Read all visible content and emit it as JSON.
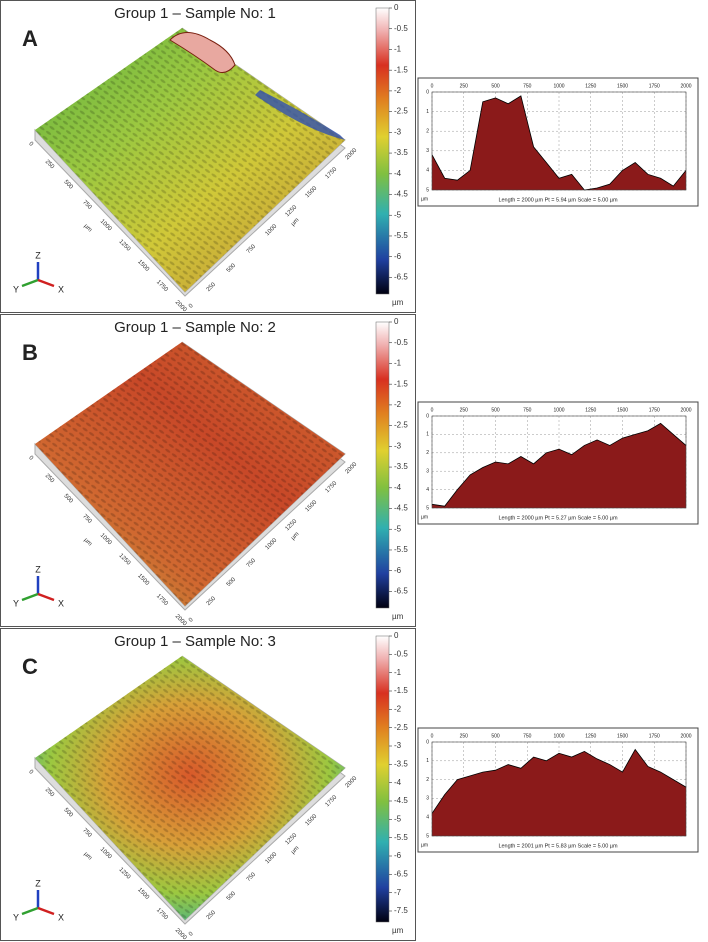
{
  "panels": [
    {
      "label": "A",
      "title": "Group 1 – Sample No: 1",
      "colorbar": {
        "lim": [
          0,
          -6.9
        ],
        "ticks": [
          0,
          -0.5,
          -1,
          -1.5,
          -2,
          -2.5,
          -3,
          -3.5,
          -4,
          -4.5,
          -5,
          -5.5,
          -6,
          -6.5
        ],
        "unit": "µm"
      }
    },
    {
      "label": "B",
      "title": "Group 1 – Sample No: 2",
      "colorbar": {
        "lim": [
          0,
          -6.9
        ],
        "ticks": [
          0,
          -0.5,
          -1,
          -1.5,
          -2,
          -2.5,
          -3,
          -3.5,
          -4,
          -4.5,
          -5,
          -5.5,
          -6,
          -6.5
        ],
        "unit": "µm"
      }
    },
    {
      "label": "C",
      "title": "Group 1 – Sample No: 3",
      "colorbar": {
        "lim": [
          0,
          -7.8
        ],
        "ticks": [
          0,
          -0.5,
          -1,
          -1.5,
          -2,
          -2.5,
          -3,
          -3.5,
          -4,
          -4.5,
          -5,
          -5.5,
          -6,
          -6.5,
          -7,
          -7.5
        ],
        "unit": "µm"
      }
    }
  ],
  "surface_ticks": [
    "0",
    "250",
    "500",
    "750",
    "1000",
    "1250",
    "1500",
    "1750",
    "2000"
  ],
  "surface_unit": "µm",
  "gizmo": [
    "Z",
    "Y",
    "X"
  ],
  "chart_data": [
    {
      "type": "area",
      "footer": "Length = 2000 µm  Pt = 5.94 µm  Scale = 5.00 µm",
      "y_label": "µm",
      "color": "#8b1a1a",
      "x": [
        0,
        100,
        200,
        300,
        400,
        500,
        600,
        700,
        800,
        900,
        1000,
        1100,
        1200,
        1300,
        1400,
        1500,
        1600,
        1700,
        1800,
        1900,
        2000
      ],
      "values": [
        3.2,
        4.4,
        4.5,
        4.0,
        0.5,
        0.3,
        0.6,
        0.2,
        2.8,
        3.6,
        4.4,
        4.2,
        5.0,
        4.9,
        4.7,
        4.0,
        3.6,
        4.2,
        4.4,
        4.8,
        4.0
      ],
      "xlim": [
        0,
        2000
      ],
      "xticks": [
        0,
        250,
        500,
        750,
        1000,
        1250,
        1500,
        1750,
        2000
      ],
      "ylim": [
        5,
        0
      ],
      "yticks": [
        0,
        1,
        2,
        3,
        4,
        5
      ],
      "grid": true
    },
    {
      "type": "area",
      "footer": "Length = 2000 µm  Pt = 5.27 µm  Scale = 5.00 µm",
      "y_label": "µm",
      "color": "#8b1a1a",
      "x": [
        0,
        100,
        200,
        300,
        400,
        500,
        600,
        700,
        800,
        900,
        1000,
        1100,
        1200,
        1300,
        1400,
        1500,
        1600,
        1700,
        1800,
        1900,
        2000
      ],
      "values": [
        4.8,
        4.9,
        4.0,
        3.2,
        2.8,
        2.5,
        2.6,
        2.2,
        2.6,
        2.0,
        1.8,
        2.1,
        1.6,
        1.3,
        1.6,
        1.2,
        1.0,
        0.8,
        0.4,
        1.0,
        1.6
      ],
      "xlim": [
        0,
        2000
      ],
      "xticks": [
        0,
        250,
        500,
        750,
        1000,
        1250,
        1500,
        1750,
        2000
      ],
      "ylim": [
        5,
        0
      ],
      "yticks": [
        0,
        1,
        2,
        3,
        4,
        5
      ],
      "grid": true
    },
    {
      "type": "area",
      "footer": "Length = 2001 µm  Pt = 5.83 µm  Scale = 5.00 µm",
      "y_label": "µm",
      "color": "#8b1a1a",
      "x": [
        0,
        100,
        200,
        300,
        400,
        500,
        600,
        700,
        800,
        900,
        1000,
        1100,
        1200,
        1300,
        1400,
        1500,
        1600,
        1700,
        1800,
        1900,
        2000
      ],
      "values": [
        3.8,
        2.8,
        2.0,
        1.8,
        1.6,
        1.5,
        1.2,
        1.4,
        0.8,
        1.0,
        0.6,
        0.8,
        0.5,
        0.9,
        1.2,
        1.6,
        0.4,
        1.3,
        1.6,
        2.0,
        2.4
      ],
      "xlim": [
        0,
        2000
      ],
      "xticks": [
        0,
        250,
        500,
        750,
        1000,
        1250,
        1500,
        1750,
        2000
      ],
      "ylim": [
        5,
        0
      ],
      "yticks": [
        0,
        1,
        2,
        3,
        4,
        5
      ],
      "grid": true
    }
  ]
}
